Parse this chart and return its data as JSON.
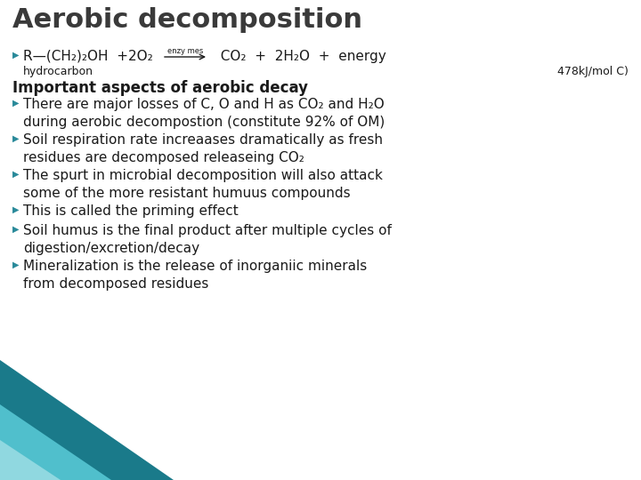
{
  "title": "Aerobic decomposition",
  "title_color": "#3a3a3a",
  "title_fontsize": 22,
  "bg_color": "#ffffff",
  "bullet_color": "#2a8a9a",
  "text_color": "#1a1a1a",
  "bullet_char": "▶",
  "section_title": "Important aspects of aerobic decay",
  "bullets": [
    "There are major losses of C, O and H as CO₂ and H₂O\nduring aerobic decompostion (constitute 92% of OM)",
    "Soil respiration rate increaases dramatically as fresh\nresidues are decomposed releaseing CO₂",
    "The spurt in microbial decomposition will also attack\nsome of the more resistant humuus compounds",
    "This is called the priming effect",
    "Soil humus is the final product after multiple cycles of\ndigestion/excretion/decay",
    "Mineralization is the release of inorganiic minerals\nfrom decomposed residues"
  ],
  "dec_colors": [
    "#1a7a8a",
    "#50bfcc",
    "#90d8e0"
  ],
  "main_fontsize": 11,
  "eq_fontsize": 11,
  "section_fontsize": 12
}
